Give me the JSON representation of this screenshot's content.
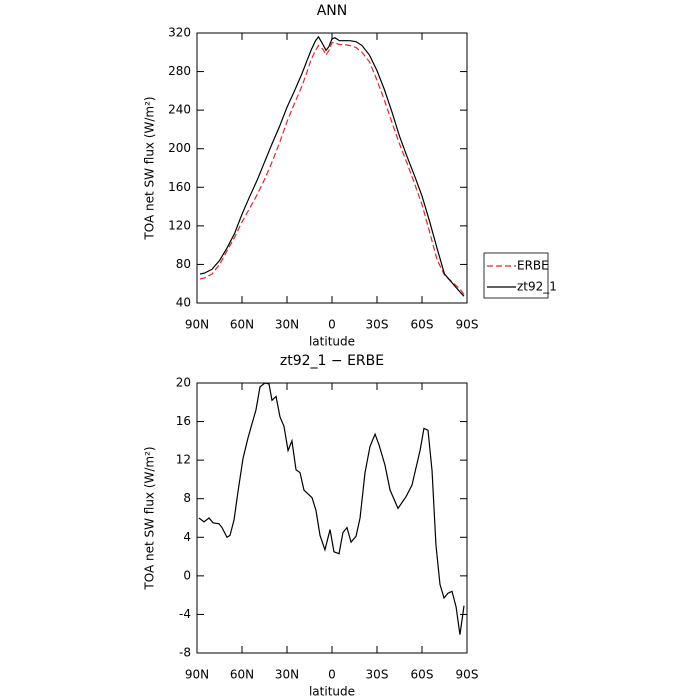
{
  "chart_data": [
    {
      "type": "line",
      "title": "ANN",
      "x_label": "latitude",
      "y_label": "TOA net SW flux (W/m²)",
      "xlim": [
        90,
        -90
      ],
      "xticks": [
        {
          "value": 90,
          "label": "90N"
        },
        {
          "value": 60,
          "label": "60N"
        },
        {
          "value": 30,
          "label": "30N"
        },
        0,
        {
          "value": -30,
          "label": "30S"
        },
        {
          "value": -60,
          "label": "60S"
        },
        {
          "value": -90,
          "label": "90S"
        }
      ],
      "ylim": [
        40,
        320
      ],
      "yticks": [
        40,
        80,
        120,
        160,
        200,
        240,
        280,
        320
      ],
      "legend": "right",
      "x": [
        88,
        85,
        80,
        75,
        70,
        65,
        60,
        55,
        50,
        45,
        40,
        35,
        30,
        25,
        20,
        17,
        14,
        11,
        9,
        6,
        4,
        2,
        0,
        -2,
        -5,
        -8,
        -12,
        -16,
        -20,
        -25,
        -30,
        -35,
        -40,
        -45,
        -50,
        -55,
        -60,
        -65,
        -70,
        -75,
        -80,
        -85,
        -88
      ],
      "series": [
        {
          "name": "ERBE",
          "color": "#e8252a",
          "linestyle": "dashed",
          "values": [
            65,
            66,
            70,
            80,
            94,
            108,
            124,
            138,
            152,
            168,
            186,
            206,
            228,
            247,
            265,
            278,
            292,
            302,
            307,
            303,
            297,
            302,
            310,
            310,
            308,
            308,
            307,
            305,
            300,
            290,
            271,
            250,
            227,
            205,
            185,
            164,
            142,
            114,
            85,
            69,
            62,
            55,
            49
          ]
        },
        {
          "name": "zt92_1",
          "color": "#000000",
          "linestyle": "solid",
          "values": [
            70,
            71,
            75,
            84,
            97,
            112,
            132,
            150,
            167,
            186,
            205,
            223,
            243,
            260,
            278,
            290,
            302,
            312,
            316,
            308,
            302,
            306,
            314,
            315,
            312,
            312,
            312,
            311,
            307,
            297,
            281,
            261,
            238,
            213,
            192,
            172,
            151,
            125,
            97,
            70,
            61,
            52,
            47
          ]
        }
      ]
    },
    {
      "type": "line",
      "title": "zt92_1 − ERBE",
      "x_label": "latitude",
      "y_label": "TOA net SW flux (W/m²)",
      "xlim": [
        90,
        -90
      ],
      "xticks": [
        {
          "value": 90,
          "label": "90N"
        },
        {
          "value": 60,
          "label": "60N"
        },
        {
          "value": 30,
          "label": "30N"
        },
        0,
        {
          "value": -30,
          "label": "30S"
        },
        {
          "value": -60,
          "label": "60S"
        },
        {
          "value": -90,
          "label": "90S"
        }
      ],
      "ylim": [
        -8,
        20
      ],
      "yticks": [
        -8,
        -4,
        0,
        4,
        8,
        12,
        16,
        20
      ],
      "x": [
        88.7,
        85.3,
        82,
        79.3,
        75.3,
        73.3,
        70,
        68,
        65.3,
        62.7,
        59.3,
        56,
        50.7,
        48,
        44.7,
        42,
        40,
        37.3,
        34.7,
        32,
        29.3,
        26.7,
        24,
        21.3,
        18.7,
        13.3,
        10.7,
        8,
        4.7,
        1.3,
        -1.3,
        -4.7,
        -7.3,
        -10,
        -12.7,
        -16,
        -18.7,
        -22,
        -25.3,
        -28.7,
        -31.3,
        -35.3,
        -38.7,
        -44,
        -49.3,
        -53.3,
        -58.7,
        -61.3,
        -64,
        -66.7,
        -69.3,
        -72,
        -74.7,
        -77.3,
        -80,
        -82.7,
        -85.3,
        -88
      ],
      "series": [
        {
          "color": "#000000",
          "linestyle": "solid",
          "values": [
            6.0,
            5.6,
            6.0,
            5.5,
            5.4,
            5.0,
            4.0,
            4.2,
            5.8,
            8.7,
            12.2,
            14.3,
            17.2,
            19.6,
            20.0,
            19.9,
            18.2,
            18.6,
            16.5,
            15.5,
            13,
            14,
            11,
            10.7,
            8.9,
            8.1,
            6.8,
            4.2,
            2.7,
            4.8,
            2.5,
            2.3,
            4.5,
            5.0,
            3.5,
            4.1,
            6.0,
            10.7,
            13.4,
            14.7,
            13.6,
            11.5,
            8.9,
            7.0,
            8.2,
            9.4,
            13.0,
            15.3,
            15.1,
            10.9,
            3.2,
            -0.9,
            -2.3,
            -1.8,
            -1.6,
            -3.2,
            -6.1,
            -3.1
          ]
        }
      ]
    }
  ]
}
